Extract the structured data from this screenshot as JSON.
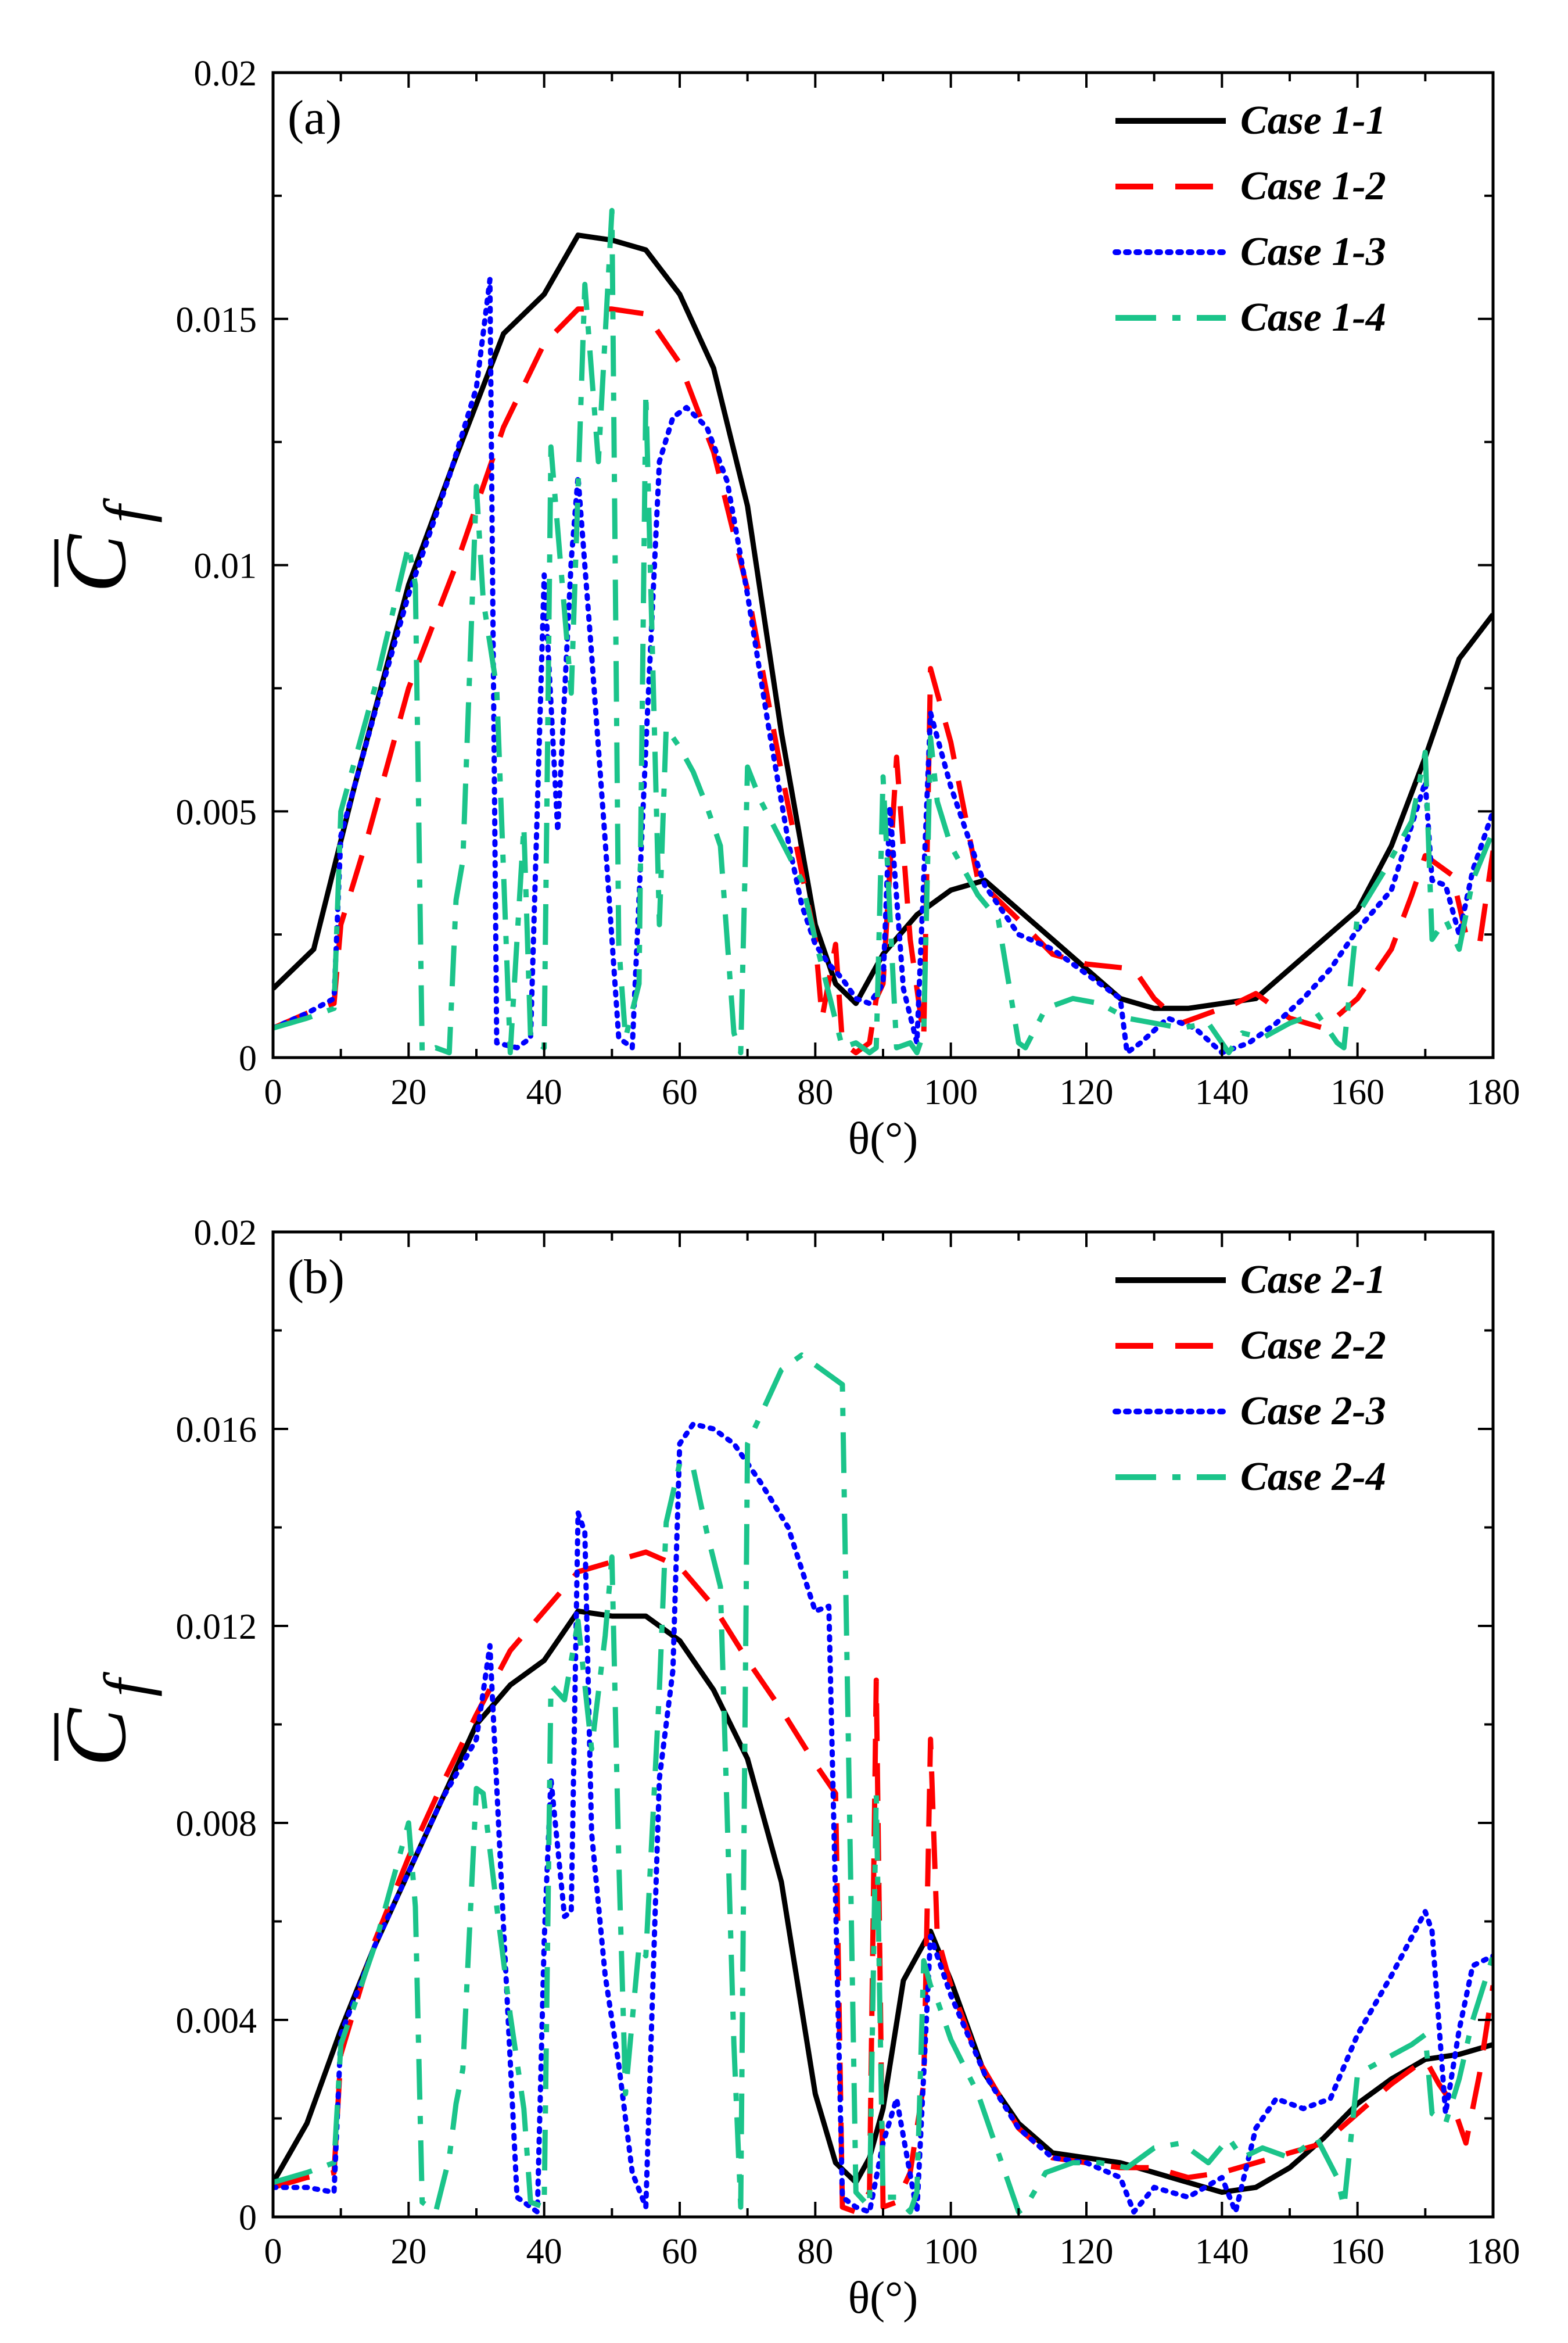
{
  "chart_data": [
    {
      "type": "line",
      "panel_label": "(a)",
      "xlabel": "θ(°)",
      "ylabel_main": "C",
      "ylabel_sub": "f",
      "xlim": [
        0,
        180
      ],
      "ylim": [
        0,
        0.02
      ],
      "xticks": [
        0,
        20,
        40,
        60,
        80,
        100,
        120,
        140,
        160,
        180
      ],
      "yticks": [
        0,
        0.005,
        0.01,
        0.015,
        0.02
      ],
      "ytick_labels": [
        "0",
        "0.005",
        "0.01",
        "0.015",
        "0.02"
      ],
      "legend_position": "top-right",
      "series": [
        {
          "name": "Case 1-1",
          "color": "#000000",
          "style": "solid",
          "x": [
            0,
            6,
            12,
            20,
            27,
            34,
            40,
            45,
            50,
            55,
            60,
            65,
            70,
            75,
            80,
            83,
            86,
            90,
            95,
            100,
            105,
            110,
            115,
            120,
            125,
            130,
            135,
            140,
            145,
            150,
            155,
            160,
            165,
            170,
            175,
            180
          ],
          "y": [
            0.0014,
            0.0022,
            0.0055,
            0.0096,
            0.0122,
            0.0147,
            0.0155,
            0.0167,
            0.0166,
            0.0164,
            0.0155,
            0.014,
            0.0112,
            0.0066,
            0.0027,
            0.0015,
            0.0011,
            0.0021,
            0.0029,
            0.0034,
            0.0036,
            0.003,
            0.0024,
            0.0018,
            0.0012,
            0.001,
            0.001,
            0.0011,
            0.0012,
            0.0018,
            0.0024,
            0.003,
            0.0043,
            0.0061,
            0.0081,
            0.009
          ]
        },
        {
          "name": "Case 1-2",
          "color": "#ff0000",
          "style": "dashed",
          "x": [
            0,
            5,
            9,
            10,
            14,
            20,
            27,
            34,
            40,
            45,
            50,
            55,
            60,
            65,
            70,
            75,
            80,
            81,
            83,
            84,
            86,
            88,
            89,
            90,
            92,
            94,
            96,
            97,
            98,
            100,
            104,
            110,
            115,
            120,
            127,
            130,
            134,
            138,
            142,
            145,
            150,
            155,
            160,
            165,
            168,
            170,
            174,
            176,
            178,
            180
          ],
          "y": [
            0.0006,
            0.0009,
            0.0011,
            0.0027,
            0.0045,
            0.0075,
            0.01,
            0.0128,
            0.0145,
            0.0152,
            0.0152,
            0.0151,
            0.0141,
            0.0123,
            0.0095,
            0.0058,
            0.0024,
            0.0008,
            0.0023,
            0.0003,
            0.0001,
            0.0003,
            0.0012,
            0.0015,
            0.0061,
            0.0024,
            0.0004,
            0.0079,
            0.0074,
            0.0064,
            0.0036,
            0.0028,
            0.0021,
            0.0019,
            0.0018,
            0.0012,
            0.0007,
            0.0009,
            0.0011,
            0.0013,
            0.0008,
            0.0006,
            0.0012,
            0.0022,
            0.0033,
            0.0041,
            0.0037,
            0.0025,
            0.0023,
            0.0042
          ]
        },
        {
          "name": "Case 1-3",
          "color": "#0000ff",
          "style": "dotted",
          "x": [
            0,
            5,
            9,
            10,
            15,
            20,
            26,
            30,
            32,
            33,
            36,
            38,
            40,
            42,
            44,
            45,
            47,
            49,
            51,
            53,
            55,
            57,
            59,
            61,
            64,
            67,
            70,
            73,
            76,
            78,
            80,
            82,
            84,
            86,
            88,
            90,
            91,
            93,
            95,
            97,
            100,
            105,
            110,
            115,
            120,
            125,
            126,
            128,
            132,
            136,
            140,
            142,
            144,
            148,
            152,
            156,
            160,
            165,
            170,
            171,
            173,
            175,
            177,
            180
          ],
          "y": [
            0.0006,
            0.0009,
            0.0012,
            0.0045,
            0.007,
            0.0094,
            0.0118,
            0.0136,
            0.0158,
            0.0003,
            0.0002,
            0.0004,
            0.0098,
            0.0046,
            0.0101,
            0.0118,
            0.0082,
            0.0044,
            0.0004,
            0.0002,
            0.0063,
            0.0121,
            0.013,
            0.0132,
            0.0128,
            0.0117,
            0.0094,
            0.0068,
            0.0044,
            0.0031,
            0.0023,
            0.0019,
            0.0016,
            0.0012,
            0.0011,
            0.0015,
            0.0051,
            0.0014,
            0.0003,
            0.007,
            0.0055,
            0.0035,
            0.0025,
            0.0022,
            0.0017,
            0.0012,
            0.0001,
            0.0003,
            0.0008,
            0.0006,
            0.0001,
            0.0002,
            0.0003,
            0.0007,
            0.0012,
            0.0018,
            0.0026,
            0.0034,
            0.0056,
            0.0036,
            0.0035,
            0.0025,
            0.0038,
            0.005
          ]
        },
        {
          "name": "Case 1-4",
          "color": "#1bc48a",
          "style": "dashdot",
          "x": [
            0,
            5,
            9,
            10,
            15,
            20,
            21,
            22,
            24,
            26,
            27,
            28,
            30,
            31,
            33,
            35,
            37,
            38,
            40,
            41,
            44,
            46,
            48,
            50,
            51,
            52,
            54,
            55,
            57,
            58,
            60,
            62,
            64,
            66,
            68,
            69,
            70,
            72,
            75,
            78,
            80,
            82,
            84,
            86,
            88,
            89,
            90,
            92,
            94,
            95,
            96,
            97,
            98,
            100,
            104,
            107,
            110,
            111,
            114,
            118,
            122,
            126,
            130,
            134,
            138,
            141,
            143,
            146,
            150,
            154,
            157,
            158,
            160,
            164,
            168,
            170,
            171,
            173,
            175,
            177,
            180
          ],
          "y": [
            0.0006,
            0.0008,
            0.001,
            0.005,
            0.0075,
            0.0104,
            0.0096,
            0.0001,
            0.0002,
            0.0001,
            0.0032,
            0.004,
            0.0116,
            0.0093,
            0.0075,
            0.0001,
            0.0047,
            0.0004,
            0.0002,
            0.0124,
            0.0074,
            0.0157,
            0.0121,
            0.0172,
            0.0023,
            0.0004,
            0.0015,
            0.0135,
            0.0027,
            0.0067,
            0.0063,
            0.0058,
            0.0051,
            0.0043,
            0.0005,
            0.0001,
            0.0059,
            0.0052,
            0.0044,
            0.0036,
            0.0024,
            0.0013,
            0.0002,
            0.0003,
            0.0001,
            0.0002,
            0.0057,
            0.0002,
            0.0003,
            0.0001,
            0.0005,
            0.0065,
            0.0052,
            0.0043,
            0.0033,
            0.0028,
            0.0003,
            0.0002,
            0.001,
            0.0012,
            0.0011,
            0.0008,
            0.0007,
            0.0006,
            0.0007,
            0.0001,
            0.0005,
            0.0004,
            0.0007,
            0.0009,
            0.0003,
            0.0002,
            0.0029,
            0.0038,
            0.0048,
            0.0062,
            0.0024,
            0.0028,
            0.0022,
            0.0036,
            0.0046
          ]
        }
      ]
    },
    {
      "type": "line",
      "panel_label": "(b)",
      "xlabel": "θ(°)",
      "ylabel_main": "C",
      "ylabel_sub": "f",
      "xlim": [
        0,
        180
      ],
      "ylim": [
        0,
        0.02
      ],
      "xticks": [
        0,
        20,
        40,
        60,
        80,
        100,
        120,
        140,
        160,
        180
      ],
      "yticks": [
        0,
        0.004,
        0.008,
        0.012,
        0.016,
        0.02
      ],
      "ytick_labels": [
        "0",
        "0.004",
        "0.008",
        "0.012",
        "0.016",
        "0.02"
      ],
      "legend_position": "top-right",
      "series": [
        {
          "name": "Case 2-1",
          "color": "#000000",
          "style": "solid",
          "x": [
            0,
            5,
            10,
            15,
            20,
            25,
            30,
            35,
            40,
            45,
            50,
            55,
            60,
            65,
            70,
            75,
            80,
            83,
            86,
            88,
            90,
            93,
            97,
            100,
            105,
            110,
            115,
            120,
            125,
            130,
            135,
            140,
            145,
            150,
            155,
            160,
            165,
            170,
            175,
            180
          ],
          "y": [
            0.0007,
            0.0019,
            0.0038,
            0.0055,
            0.007,
            0.0085,
            0.01,
            0.0108,
            0.0113,
            0.0123,
            0.0122,
            0.0122,
            0.0117,
            0.0107,
            0.0093,
            0.0068,
            0.0025,
            0.0011,
            0.0007,
            0.0012,
            0.0022,
            0.0048,
            0.0058,
            0.0048,
            0.0029,
            0.0019,
            0.0013,
            0.0012,
            0.0011,
            0.0009,
            0.0007,
            0.0005,
            0.0006,
            0.001,
            0.0016,
            0.0023,
            0.0028,
            0.0032,
            0.0033,
            0.0035
          ]
        },
        {
          "name": "Case 2-2",
          "color": "#ff0000",
          "style": "dashed",
          "x": [
            0,
            5,
            9,
            10,
            15,
            20,
            25,
            30,
            35,
            40,
            45,
            50,
            55,
            60,
            65,
            70,
            75,
            80,
            83,
            84,
            86,
            88,
            89,
            90,
            92,
            94,
            96,
            97,
            98,
            100,
            104,
            110,
            115,
            120,
            125,
            130,
            135,
            140,
            145,
            150,
            155,
            160,
            165,
            170,
            172,
            174,
            176,
            178,
            180
          ],
          "y": [
            0.0006,
            0.0008,
            0.0009,
            0.0033,
            0.0056,
            0.0073,
            0.0088,
            0.0102,
            0.0115,
            0.0123,
            0.0131,
            0.0133,
            0.0135,
            0.0132,
            0.0124,
            0.0113,
            0.0103,
            0.0092,
            0.0086,
            0.0002,
            0.0001,
            0.0005,
            0.0109,
            0.0002,
            0.0003,
            0.0009,
            0.0027,
            0.0097,
            0.0057,
            0.0047,
            0.0032,
            0.0018,
            0.0012,
            0.0011,
            0.001,
            0.001,
            0.0008,
            0.0009,
            0.0011,
            0.0013,
            0.0015,
            0.0021,
            0.0027,
            0.0032,
            0.0027,
            0.0023,
            0.0015,
            0.0029,
            0.0047
          ]
        },
        {
          "name": "Case 2-3",
          "color": "#0000ff",
          "style": "dotted",
          "x": [
            0,
            5,
            9,
            10,
            15,
            20,
            25,
            30,
            32,
            34,
            36,
            38,
            39,
            40,
            41,
            43,
            44,
            45,
            46,
            47,
            49,
            51,
            53,
            55,
            57,
            59,
            60,
            62,
            65,
            68,
            72,
            76,
            80,
            82,
            84,
            86,
            88,
            90,
            92,
            95,
            97,
            100,
            105,
            110,
            115,
            120,
            125,
            127,
            130,
            135,
            140,
            142,
            145,
            148,
            152,
            156,
            160,
            165,
            170,
            171,
            173,
            175,
            177,
            180
          ],
          "y": [
            0.0006,
            0.0006,
            0.0005,
            0.0037,
            0.0055,
            0.007,
            0.0085,
            0.0097,
            0.0116,
            0.0059,
            0.0004,
            0.0002,
            0.0001,
            0.0056,
            0.0089,
            0.0061,
            0.0062,
            0.0143,
            0.0139,
            0.0078,
            0.0049,
            0.0031,
            0.0009,
            0.0002,
            0.0089,
            0.0111,
            0.0157,
            0.0161,
            0.016,
            0.0157,
            0.0149,
            0.014,
            0.0123,
            0.0124,
            0.0004,
            0.0002,
            0.0001,
            0.0015,
            0.0024,
            0.0001,
            0.0057,
            0.0045,
            0.0029,
            0.0018,
            0.0012,
            0.0011,
            0.0008,
            0.0001,
            0.0006,
            0.0004,
            0.0008,
            0.0001,
            0.0018,
            0.0024,
            0.0022,
            0.0024,
            0.0037,
            0.0049,
            0.0062,
            0.0058,
            0.0021,
            0.0038,
            0.0051,
            0.0053
          ]
        },
        {
          "name": "Case 2-4",
          "color": "#1bc48a",
          "style": "dashdot",
          "x": [
            0,
            5,
            9,
            10,
            15,
            20,
            21,
            22,
            24,
            26,
            27,
            28,
            30,
            31,
            33,
            35,
            37,
            38,
            40,
            41,
            43,
            45,
            47,
            49,
            50,
            51,
            52,
            54,
            55,
            57,
            58,
            60,
            62,
            64,
            66,
            68,
            69,
            70,
            72,
            75,
            78,
            80,
            82,
            84,
            86,
            88,
            89,
            90,
            92,
            94,
            95,
            96,
            97,
            98,
            100,
            104,
            107,
            110,
            111,
            114,
            118,
            122,
            126,
            130,
            134,
            138,
            141,
            143,
            146,
            150,
            154,
            157,
            158,
            160,
            164,
            168,
            170,
            171,
            173,
            175,
            177,
            180
          ],
          "y": [
            0.0007,
            0.0009,
            0.0011,
            0.0035,
            0.0055,
            0.008,
            0.0063,
            0.0003,
            0.0001,
            0.0012,
            0.0023,
            0.003,
            0.0087,
            0.0086,
            0.0063,
            0.0041,
            0.0022,
            0.0003,
            0.0002,
            0.0108,
            0.0105,
            0.0121,
            0.0095,
            0.0118,
            0.0134,
            0.0073,
            0.0025,
            0.0055,
            0.0053,
            0.0107,
            0.0141,
            0.0153,
            0.0152,
            0.0139,
            0.0128,
            0.0035,
            0.0002,
            0.0157,
            0.0163,
            0.0172,
            0.0175,
            0.0173,
            0.0171,
            0.0169,
            0.0005,
            0.0002,
            0.0086,
            0.0004,
            0.0004,
            0.0001,
            0.0005,
            0.0052,
            0.0047,
            0.0044,
            0.0036,
            0.0025,
            0.0013,
            0.0001,
            0.0002,
            0.0009,
            0.0011,
            0.0011,
            0.001,
            0.0014,
            0.0015,
            0.0011,
            0.0016,
            0.0012,
            0.0014,
            0.0012,
            0.0016,
            0.0008,
            0.0002,
            0.0029,
            0.0032,
            0.0035,
            0.0037,
            0.0021,
            0.0019,
            0.0028,
            0.004,
            0.0053
          ]
        }
      ]
    }
  ]
}
